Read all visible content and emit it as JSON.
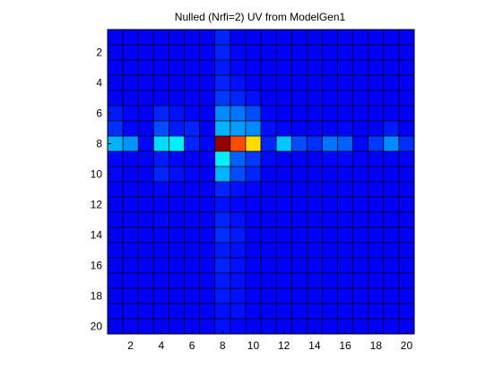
{
  "chart_data": {
    "type": "heatmap",
    "title": "Nulled (Nrfi=2) UV from ModelGen1",
    "xlabel": "",
    "ylabel": "",
    "x_range": [
      0.5,
      20.5
    ],
    "y_range": [
      0.5,
      20.5
    ],
    "x_ticks": [
      2,
      4,
      6,
      8,
      10,
      12,
      14,
      16,
      18,
      20
    ],
    "y_ticks": [
      2,
      4,
      6,
      8,
      10,
      12,
      14,
      16,
      18,
      20
    ],
    "y_direction": "top-to-bottom",
    "colormap": "jet",
    "value_range": [
      0,
      1
    ],
    "grid": true,
    "grid_color": "#000000",
    "matrix": [
      [
        0.12,
        0.12,
        0.12,
        0.12,
        0.12,
        0.12,
        0.12,
        0.16,
        0.12,
        0.12,
        0.12,
        0.12,
        0.12,
        0.12,
        0.12,
        0.12,
        0.12,
        0.12,
        0.12,
        0.12
      ],
      [
        0.12,
        0.12,
        0.12,
        0.12,
        0.12,
        0.12,
        0.12,
        0.16,
        0.13,
        0.12,
        0.12,
        0.12,
        0.12,
        0.12,
        0.12,
        0.12,
        0.12,
        0.12,
        0.12,
        0.12
      ],
      [
        0.12,
        0.12,
        0.12,
        0.12,
        0.12,
        0.12,
        0.12,
        0.15,
        0.13,
        0.12,
        0.12,
        0.12,
        0.12,
        0.12,
        0.12,
        0.12,
        0.12,
        0.12,
        0.12,
        0.12
      ],
      [
        0.12,
        0.12,
        0.12,
        0.12,
        0.12,
        0.12,
        0.12,
        0.16,
        0.14,
        0.12,
        0.12,
        0.12,
        0.12,
        0.12,
        0.12,
        0.12,
        0.12,
        0.12,
        0.12,
        0.12
      ],
      [
        0.12,
        0.12,
        0.12,
        0.12,
        0.12,
        0.12,
        0.12,
        0.18,
        0.16,
        0.14,
        0.12,
        0.12,
        0.12,
        0.12,
        0.12,
        0.12,
        0.12,
        0.12,
        0.12,
        0.12
      ],
      [
        0.15,
        0.13,
        0.12,
        0.16,
        0.14,
        0.13,
        0.12,
        0.26,
        0.24,
        0.2,
        0.13,
        0.12,
        0.12,
        0.12,
        0.12,
        0.12,
        0.12,
        0.12,
        0.12,
        0.12
      ],
      [
        0.17,
        0.13,
        0.12,
        0.2,
        0.15,
        0.16,
        0.12,
        0.3,
        0.28,
        0.26,
        0.14,
        0.13,
        0.12,
        0.12,
        0.12,
        0.13,
        0.12,
        0.12,
        0.15,
        0.12
      ],
      [
        0.3,
        0.27,
        0.13,
        0.34,
        0.36,
        0.16,
        0.13,
        0.98,
        0.8,
        0.66,
        0.16,
        0.32,
        0.2,
        0.17,
        0.24,
        0.22,
        0.13,
        0.18,
        0.26,
        0.17
      ],
      [
        0.13,
        0.12,
        0.12,
        0.15,
        0.13,
        0.12,
        0.12,
        0.36,
        0.22,
        0.18,
        0.13,
        0.12,
        0.12,
        0.12,
        0.13,
        0.13,
        0.12,
        0.12,
        0.12,
        0.12
      ],
      [
        0.13,
        0.12,
        0.12,
        0.16,
        0.14,
        0.13,
        0.12,
        0.3,
        0.2,
        0.16,
        0.12,
        0.12,
        0.12,
        0.12,
        0.12,
        0.12,
        0.12,
        0.12,
        0.12,
        0.12
      ],
      [
        0.12,
        0.12,
        0.12,
        0.13,
        0.12,
        0.12,
        0.12,
        0.16,
        0.14,
        0.13,
        0.12,
        0.12,
        0.12,
        0.12,
        0.12,
        0.12,
        0.12,
        0.12,
        0.12,
        0.12
      ],
      [
        0.12,
        0.12,
        0.12,
        0.12,
        0.12,
        0.12,
        0.12,
        0.14,
        0.13,
        0.12,
        0.12,
        0.12,
        0.12,
        0.12,
        0.12,
        0.12,
        0.12,
        0.12,
        0.12,
        0.12
      ],
      [
        0.12,
        0.12,
        0.12,
        0.13,
        0.12,
        0.12,
        0.12,
        0.16,
        0.14,
        0.12,
        0.12,
        0.12,
        0.12,
        0.12,
        0.12,
        0.12,
        0.12,
        0.12,
        0.12,
        0.12
      ],
      [
        0.12,
        0.12,
        0.12,
        0.12,
        0.12,
        0.12,
        0.12,
        0.17,
        0.15,
        0.12,
        0.12,
        0.12,
        0.12,
        0.12,
        0.12,
        0.12,
        0.12,
        0.12,
        0.12,
        0.12
      ],
      [
        0.12,
        0.12,
        0.12,
        0.12,
        0.12,
        0.12,
        0.12,
        0.15,
        0.14,
        0.12,
        0.12,
        0.12,
        0.12,
        0.12,
        0.12,
        0.12,
        0.12,
        0.12,
        0.12,
        0.12
      ],
      [
        0.12,
        0.12,
        0.12,
        0.12,
        0.12,
        0.12,
        0.12,
        0.16,
        0.14,
        0.12,
        0.12,
        0.12,
        0.12,
        0.12,
        0.12,
        0.12,
        0.12,
        0.12,
        0.12,
        0.12
      ],
      [
        0.12,
        0.12,
        0.12,
        0.12,
        0.12,
        0.12,
        0.12,
        0.15,
        0.14,
        0.12,
        0.12,
        0.12,
        0.12,
        0.12,
        0.12,
        0.12,
        0.12,
        0.12,
        0.12,
        0.12
      ],
      [
        0.12,
        0.12,
        0.12,
        0.12,
        0.12,
        0.12,
        0.12,
        0.15,
        0.14,
        0.12,
        0.12,
        0.12,
        0.12,
        0.12,
        0.12,
        0.12,
        0.12,
        0.12,
        0.12,
        0.12
      ],
      [
        0.12,
        0.12,
        0.12,
        0.12,
        0.12,
        0.12,
        0.12,
        0.14,
        0.14,
        0.12,
        0.12,
        0.12,
        0.12,
        0.12,
        0.12,
        0.12,
        0.12,
        0.12,
        0.12,
        0.12
      ],
      [
        0.12,
        0.12,
        0.12,
        0.12,
        0.12,
        0.12,
        0.12,
        0.14,
        0.13,
        0.12,
        0.12,
        0.12,
        0.12,
        0.12,
        0.12,
        0.12,
        0.12,
        0.12,
        0.12,
        0.12
      ]
    ]
  }
}
